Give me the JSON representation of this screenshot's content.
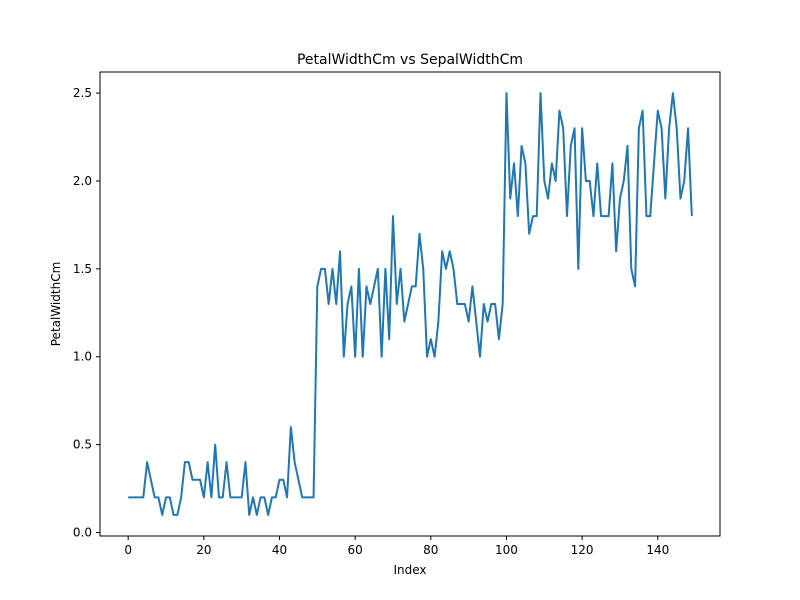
{
  "chart_data": {
    "type": "line",
    "title": "PetalWidthCm vs SepalWidthCm",
    "xlabel": "Index",
    "ylabel": "PetalWidthCm",
    "xlim": [
      -7.45,
      156.45
    ],
    "ylim": [
      -0.02,
      2.62
    ],
    "xticks": [
      0,
      20,
      40,
      60,
      80,
      100,
      120,
      140
    ],
    "yticks": [
      0.0,
      0.5,
      1.0,
      1.5,
      2.0,
      2.5
    ],
    "xtick_labels": [
      "0",
      "20",
      "40",
      "60",
      "80",
      "100",
      "120",
      "140"
    ],
    "ytick_labels": [
      "0.0",
      "0.5",
      "1.0",
      "1.5",
      "2.0",
      "2.5"
    ],
    "grid": false,
    "series": [
      {
        "name": "PetalWidthCm",
        "color": "#1f77b4",
        "values": [
          0.2,
          0.2,
          0.2,
          0.2,
          0.2,
          0.4,
          0.3,
          0.2,
          0.2,
          0.1,
          0.2,
          0.2,
          0.1,
          0.1,
          0.2,
          0.4,
          0.4,
          0.3,
          0.3,
          0.3,
          0.2,
          0.4,
          0.2,
          0.5,
          0.2,
          0.2,
          0.4,
          0.2,
          0.2,
          0.2,
          0.2,
          0.4,
          0.1,
          0.2,
          0.1,
          0.2,
          0.2,
          0.1,
          0.2,
          0.2,
          0.3,
          0.3,
          0.2,
          0.6,
          0.4,
          0.3,
          0.2,
          0.2,
          0.2,
          0.2,
          1.4,
          1.5,
          1.5,
          1.3,
          1.5,
          1.3,
          1.6,
          1.0,
          1.3,
          1.4,
          1.0,
          1.5,
          1.0,
          1.4,
          1.3,
          1.4,
          1.5,
          1.0,
          1.5,
          1.1,
          1.8,
          1.3,
          1.5,
          1.2,
          1.3,
          1.4,
          1.4,
          1.7,
          1.5,
          1.0,
          1.1,
          1.0,
          1.2,
          1.6,
          1.5,
          1.6,
          1.5,
          1.3,
          1.3,
          1.3,
          1.2,
          1.4,
          1.2,
          1.0,
          1.3,
          1.2,
          1.3,
          1.3,
          1.1,
          1.3,
          2.5,
          1.9,
          2.1,
          1.8,
          2.2,
          2.1,
          1.7,
          1.8,
          1.8,
          2.5,
          2.0,
          1.9,
          2.1,
          2.0,
          2.4,
          2.3,
          1.8,
          2.2,
          2.3,
          1.5,
          2.3,
          2.0,
          2.0,
          1.8,
          2.1,
          1.8,
          1.8,
          1.8,
          2.1,
          1.6,
          1.9,
          2.0,
          2.2,
          1.5,
          1.4,
          2.3,
          2.4,
          1.8,
          1.8,
          2.1,
          2.4,
          2.3,
          1.9,
          2.3,
          2.5,
          2.3,
          1.9,
          2.0,
          2.3,
          1.8
        ]
      }
    ]
  }
}
